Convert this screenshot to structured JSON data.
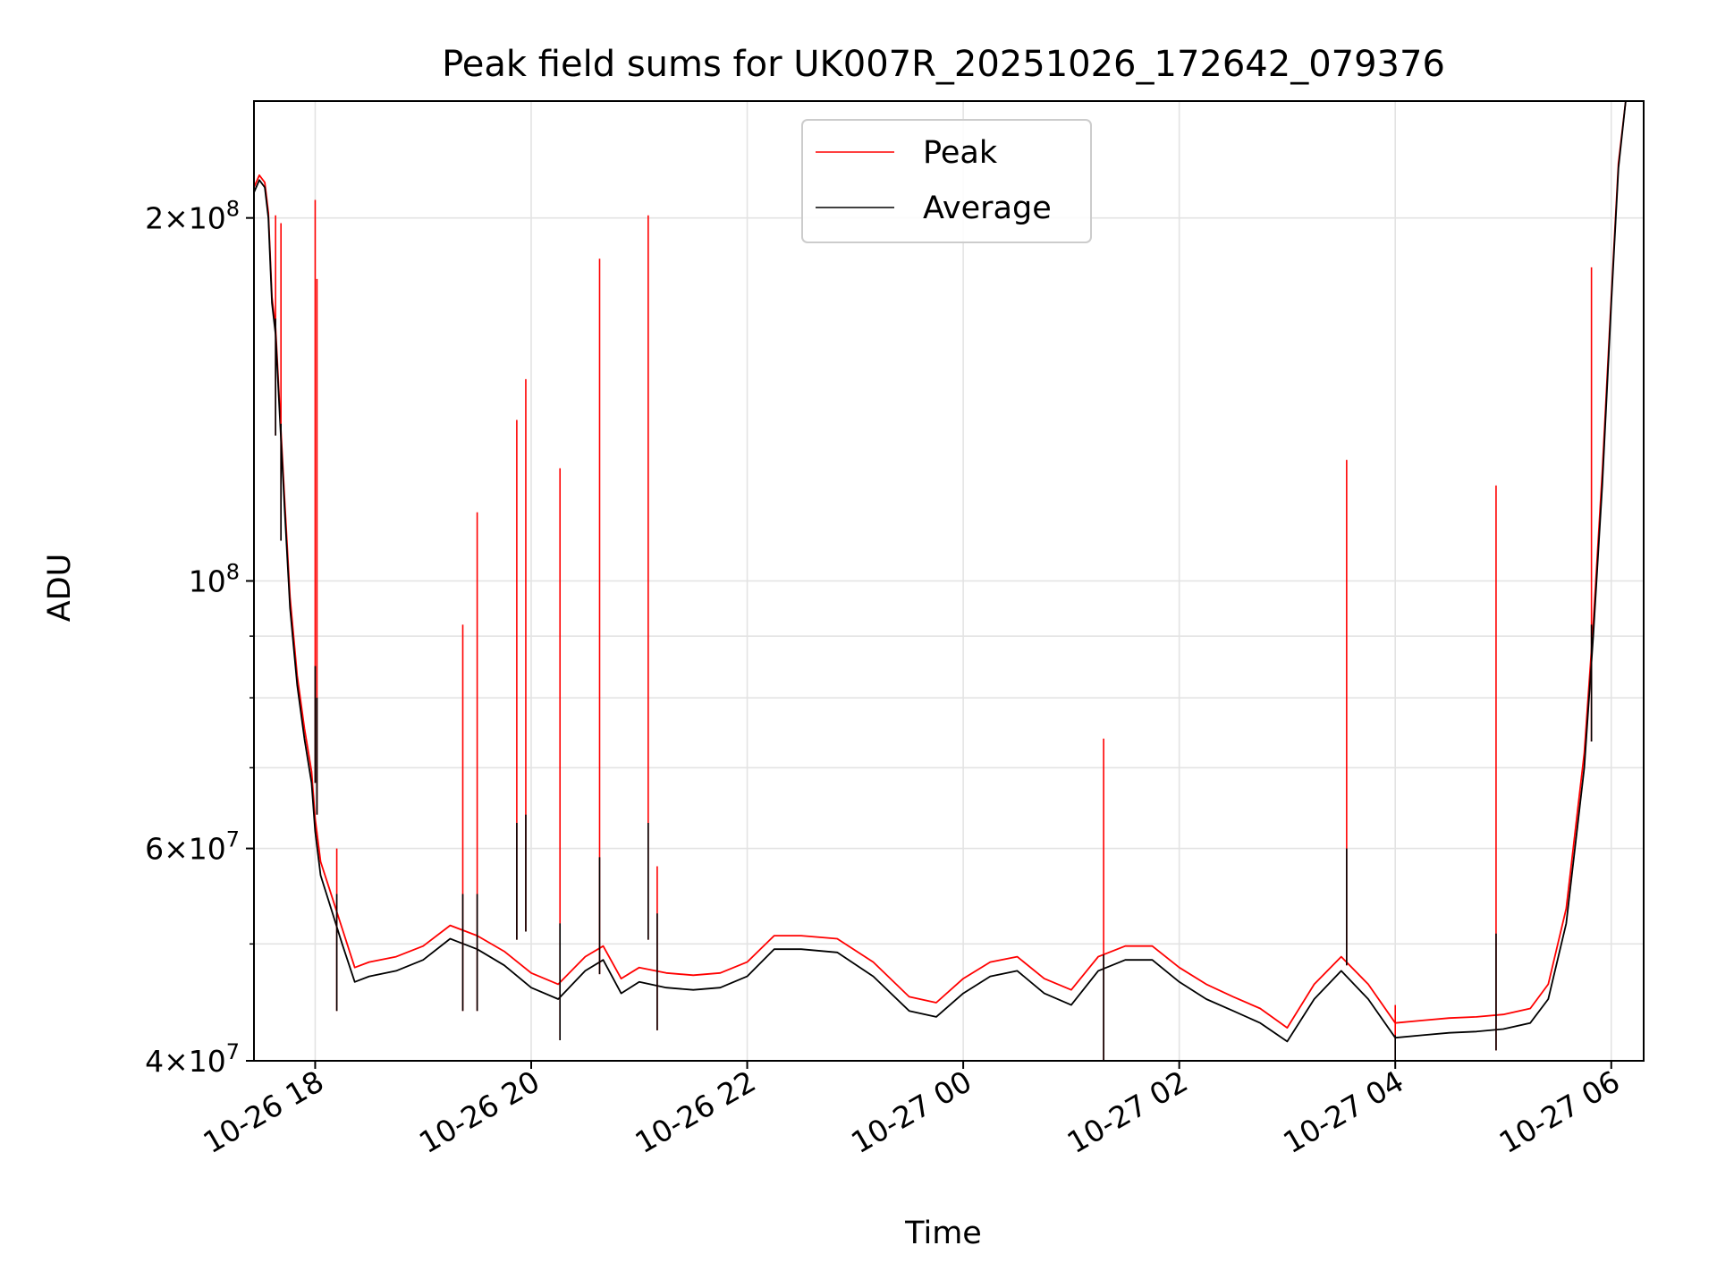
{
  "chart_data": {
    "type": "line",
    "title": "Peak field sums for UK007R_20251026_172642_079376",
    "xlabel": "Time",
    "ylabel": "ADU",
    "yscale": "log",
    "ylim": [
      40000000,
      250000000
    ],
    "xlim": [
      "2025-10-26T17:26",
      "2025-10-27T06:18"
    ],
    "grid": true,
    "legend": {
      "placement": "top-center"
    },
    "x_ticks": [
      {
        "label": "10-26 18",
        "time": "2025-10-26T18:00"
      },
      {
        "label": "10-26 20",
        "time": "2025-10-26T20:00"
      },
      {
        "label": "10-26 22",
        "time": "2025-10-26T22:00"
      },
      {
        "label": "10-27 00",
        "time": "2025-10-27T00:00"
      },
      {
        "label": "10-27 02",
        "time": "2025-10-27T02:00"
      },
      {
        "label": "10-27 04",
        "time": "2025-10-27T04:00"
      },
      {
        "label": "10-27 06",
        "time": "2025-10-27T06:00"
      }
    ],
    "y_ticks": [
      {
        "label": "4×10⁷",
        "mantissa": "4",
        "exp": "7",
        "value": 40000000
      },
      {
        "label": "6×10⁷",
        "mantissa": "6",
        "exp": "7",
        "value": 60000000
      },
      {
        "label": "10⁸",
        "mantissa": "",
        "exp": "8",
        "value": 100000000
      },
      {
        "label": "2×10⁸",
        "mantissa": "2",
        "exp": "8",
        "value": 200000000
      }
    ],
    "y_minor_ticks": [
      50000000,
      70000000,
      80000000,
      90000000
    ],
    "series": [
      {
        "name": "Average",
        "color": "#000000",
        "x": [
          "2025-10-26T17:26",
          "2025-10-26T17:29",
          "2025-10-26T17:32",
          "2025-10-26T17:34",
          "2025-10-26T17:36",
          "2025-10-26T17:38",
          "2025-10-26T17:40",
          "2025-10-26T17:43",
          "2025-10-26T17:46",
          "2025-10-26T17:50",
          "2025-10-26T17:54",
          "2025-10-26T17:58",
          "2025-10-26T18:00",
          "2025-10-26T18:03",
          "2025-10-26T18:08",
          "2025-10-26T18:15",
          "2025-10-26T18:22",
          "2025-10-26T18:30",
          "2025-10-26T18:45",
          "2025-10-26T19:00",
          "2025-10-26T19:15",
          "2025-10-26T19:30",
          "2025-10-26T19:45",
          "2025-10-26T20:00",
          "2025-10-26T20:15",
          "2025-10-26T20:30",
          "2025-10-26T20:40",
          "2025-10-26T20:50",
          "2025-10-26T21:00",
          "2025-10-26T21:15",
          "2025-10-26T21:30",
          "2025-10-26T21:45",
          "2025-10-26T22:00",
          "2025-10-26T22:15",
          "2025-10-26T22:30",
          "2025-10-26T22:50",
          "2025-10-26T23:10",
          "2025-10-26T23:30",
          "2025-10-26T23:45",
          "2025-10-27T00:00",
          "2025-10-27T00:15",
          "2025-10-27T00:30",
          "2025-10-27T00:45",
          "2025-10-27T01:00",
          "2025-10-27T01:15",
          "2025-10-27T01:30",
          "2025-10-27T01:45",
          "2025-10-27T02:00",
          "2025-10-27T02:15",
          "2025-10-27T02:30",
          "2025-10-27T02:45",
          "2025-10-27T03:00",
          "2025-10-27T03:15",
          "2025-10-27T03:30",
          "2025-10-27T03:45",
          "2025-10-27T04:00",
          "2025-10-27T04:15",
          "2025-10-27T04:30",
          "2025-10-27T04:45",
          "2025-10-27T05:00",
          "2025-10-27T05:15",
          "2025-10-27T05:25",
          "2025-10-27T05:35",
          "2025-10-27T05:45",
          "2025-10-27T05:50",
          "2025-10-27T05:55",
          "2025-10-27T06:00",
          "2025-10-27T06:04",
          "2025-10-27T06:08",
          "2025-10-27T06:18"
        ],
        "values": [
          210000000,
          215000000,
          212000000,
          200000000,
          170000000,
          160000000,
          140000000,
          115000000,
          95000000,
          82000000,
          74000000,
          68000000,
          62000000,
          57000000,
          54000000,
          50000000,
          46500000,
          47000000,
          47500000,
          48500000,
          50500000,
          49500000,
          48000000,
          46000000,
          45000000,
          47500000,
          48500000,
          45500000,
          46500000,
          46000000,
          45800000,
          46000000,
          47000000,
          49500000,
          49500000,
          49200000,
          47000000,
          44000000,
          43500000,
          45500000,
          47000000,
          47500000,
          45500000,
          44500000,
          47500000,
          48500000,
          48500000,
          46500000,
          45000000,
          44000000,
          43000000,
          41500000,
          45000000,
          47500000,
          45000000,
          41800000,
          42000000,
          42200000,
          42300000,
          42500000,
          43000000,
          45000000,
          52000000,
          70000000,
          90000000,
          120000000,
          170000000,
          220000000,
          250000000,
          250000000
        ]
      },
      {
        "name": "Peak",
        "color": "#ff0000",
        "x": [
          "2025-10-26T17:26",
          "2025-10-26T17:29",
          "2025-10-26T17:32",
          "2025-10-26T17:34",
          "2025-10-26T17:36",
          "2025-10-26T17:38",
          "2025-10-26T17:40",
          "2025-10-26T17:43",
          "2025-10-26T17:46",
          "2025-10-26T17:50",
          "2025-10-26T17:54",
          "2025-10-26T17:58",
          "2025-10-26T18:00",
          "2025-10-26T18:03",
          "2025-10-26T18:08",
          "2025-10-26T18:15",
          "2025-10-26T18:22",
          "2025-10-26T18:30",
          "2025-10-26T18:45",
          "2025-10-26T19:00",
          "2025-10-26T19:15",
          "2025-10-26T19:30",
          "2025-10-26T19:45",
          "2025-10-26T20:00",
          "2025-10-26T20:15",
          "2025-10-26T20:30",
          "2025-10-26T20:40",
          "2025-10-26T20:50",
          "2025-10-26T21:00",
          "2025-10-26T21:15",
          "2025-10-26T21:30",
          "2025-10-26T21:45",
          "2025-10-26T22:00",
          "2025-10-26T22:15",
          "2025-10-26T22:30",
          "2025-10-26T22:50",
          "2025-10-26T23:10",
          "2025-10-26T23:30",
          "2025-10-26T23:45",
          "2025-10-27T00:00",
          "2025-10-27T00:15",
          "2025-10-27T00:30",
          "2025-10-27T00:45",
          "2025-10-27T01:00",
          "2025-10-27T01:15",
          "2025-10-27T01:30",
          "2025-10-27T01:45",
          "2025-10-27T02:00",
          "2025-10-27T02:15",
          "2025-10-27T02:30",
          "2025-10-27T02:45",
          "2025-10-27T03:00",
          "2025-10-27T03:15",
          "2025-10-27T03:30",
          "2025-10-27T03:45",
          "2025-10-27T04:00",
          "2025-10-27T04:15",
          "2025-10-27T04:30",
          "2025-10-27T04:45",
          "2025-10-27T05:00",
          "2025-10-27T05:15",
          "2025-10-27T05:25",
          "2025-10-27T05:35",
          "2025-10-27T05:45",
          "2025-10-27T05:50",
          "2025-10-27T05:55",
          "2025-10-27T06:00",
          "2025-10-27T06:04",
          "2025-10-27T06:08",
          "2025-10-27T06:18"
        ],
        "values": [
          212000000,
          217000000,
          214000000,
          202000000,
          172000000,
          162000000,
          142000000,
          117000000,
          97000000,
          83500000,
          75500000,
          69500000,
          63500000,
          58500000,
          55500000,
          51500000,
          47800000,
          48300000,
          48800000,
          49800000,
          51800000,
          50800000,
          49300000,
          47300000,
          46300000,
          48800000,
          49800000,
          46800000,
          47800000,
          47300000,
          47100000,
          47300000,
          48300000,
          50800000,
          50800000,
          50500000,
          48300000,
          45200000,
          44700000,
          46800000,
          48300000,
          48800000,
          46800000,
          45800000,
          48800000,
          49800000,
          49800000,
          47800000,
          46300000,
          45200000,
          44200000,
          42600000,
          46300000,
          48800000,
          46300000,
          43000000,
          43200000,
          43400000,
          43500000,
          43700000,
          44200000,
          46300000,
          53500000,
          72000000,
          92000000,
          123000000,
          172000000,
          222000000,
          250000000,
          250000000
        ],
        "spikes": [
          {
            "time": "2025-10-26T17:38",
            "peak": 201000000,
            "average": 165000000
          },
          {
            "time": "2025-10-26T17:41",
            "peak": 198000000,
            "average": 135000000
          },
          {
            "time": "2025-10-26T18:00",
            "peak": 207000000,
            "average": 85000000
          },
          {
            "time": "2025-10-26T18:01",
            "peak": 178000000,
            "average": 80000000
          },
          {
            "time": "2025-10-26T18:12",
            "peak": 60000000,
            "average": 55000000
          },
          {
            "time": "2025-10-26T19:22",
            "peak": 92000000,
            "average": 55000000
          },
          {
            "time": "2025-10-26T19:30",
            "peak": 114000000,
            "average": 55000000
          },
          {
            "time": "2025-10-26T19:52",
            "peak": 136000000,
            "average": 63000000
          },
          {
            "time": "2025-10-26T19:57",
            "peak": 147000000,
            "average": 64000000
          },
          {
            "time": "2025-10-26T20:16",
            "peak": 124000000,
            "average": 52000000
          },
          {
            "time": "2025-10-26T20:38",
            "peak": 185000000,
            "average": 59000000
          },
          {
            "time": "2025-10-26T21:05",
            "peak": 201000000,
            "average": 63000000
          },
          {
            "time": "2025-10-26T21:10",
            "peak": 58000000,
            "average": 53000000
          },
          {
            "time": "2025-10-27T01:18",
            "peak": 74000000,
            "average": 49000000
          },
          {
            "time": "2025-10-27T03:33",
            "peak": 126000000,
            "average": 60000000
          },
          {
            "time": "2025-10-27T04:00",
            "peak": 44500000,
            "average": 42000000
          },
          {
            "time": "2025-10-27T04:56",
            "peak": 120000000,
            "average": 51000000
          },
          {
            "time": "2025-10-27T05:49",
            "peak": 182000000,
            "average": 92000000
          }
        ]
      }
    ]
  }
}
